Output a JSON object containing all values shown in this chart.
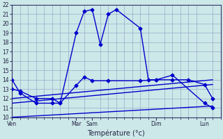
{
  "bg_color": "#cce8e8",
  "grid_color": "#99aacc",
  "line_color": "#0000cc",
  "xlabel": "Température (°c)",
  "ylim": [
    10,
    22
  ],
  "yticks": [
    10,
    11,
    12,
    13,
    14,
    15,
    16,
    17,
    18,
    19,
    20,
    21,
    22
  ],
  "xlim": [
    0,
    26
  ],
  "xtick_positions": [
    0,
    8,
    10,
    18,
    24
  ],
  "xtick_labels": [
    "Ven",
    "Mar",
    "Sam",
    "Dim",
    "Lun"
  ],
  "minor_xtick_positions": [
    0,
    1,
    2,
    3,
    4,
    5,
    6,
    7,
    8,
    9,
    10,
    11,
    12,
    13,
    14,
    15,
    16,
    17,
    18,
    19,
    20,
    21,
    22,
    23,
    24,
    25,
    26
  ],
  "line1_x": [
    0,
    1,
    3,
    5,
    6,
    8,
    9,
    10,
    11,
    12,
    13,
    16,
    17,
    18,
    20,
    24,
    25
  ],
  "line1_y": [
    14.0,
    12.6,
    11.5,
    11.5,
    11.5,
    19.0,
    21.3,
    21.5,
    17.8,
    21.0,
    21.5,
    19.5,
    14.0,
    14.0,
    14.5,
    11.5,
    11.0
  ],
  "line2_x": [
    0,
    1,
    3,
    5,
    6,
    8,
    9,
    10,
    12,
    16,
    18,
    20,
    22,
    24,
    25
  ],
  "line2_y": [
    13.0,
    12.8,
    12.0,
    12.0,
    11.5,
    13.4,
    14.3,
    13.9,
    13.9,
    13.9,
    14.0,
    14.0,
    14.0,
    13.5,
    12.0
  ],
  "line3_x": [
    0,
    25
  ],
  "line3_y": [
    11.5,
    13.5
  ],
  "line4_x": [
    0,
    25
  ],
  "line4_y": [
    12.0,
    14.0
  ],
  "line5_x": [
    0,
    25
  ],
  "line5_y": [
    10.0,
    11.2
  ],
  "marker_size": 2.5,
  "line_width": 1.0
}
